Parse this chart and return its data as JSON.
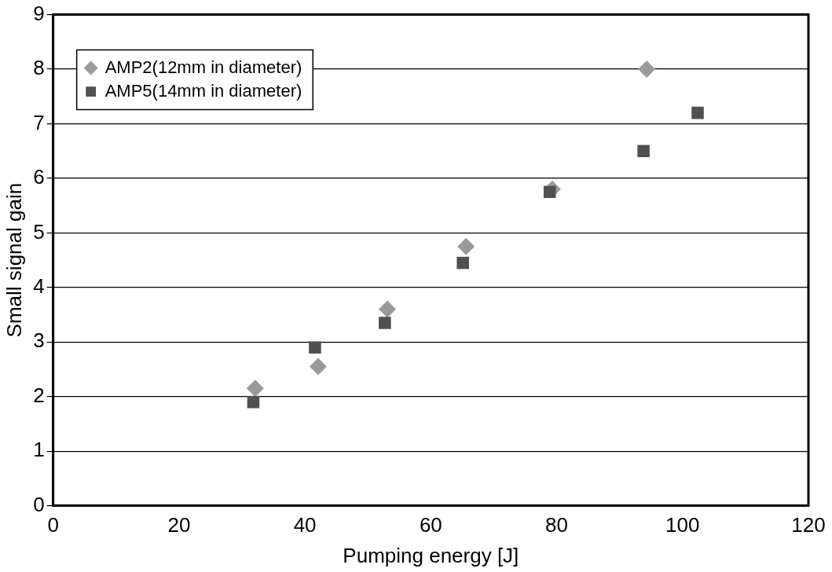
{
  "chart_data": {
    "type": "scatter",
    "xlabel": "Pumping energy [J]",
    "ylabel": "Small signal gain",
    "xlim": [
      0,
      120
    ],
    "xticks": [
      0,
      20,
      40,
      60,
      80,
      100,
      120
    ],
    "ylim": [
      0,
      9
    ],
    "yticks": [
      0,
      1,
      2,
      3,
      4,
      5,
      6,
      7,
      8,
      9
    ],
    "grid": "y",
    "legend": "top left",
    "series": [
      {
        "name": "AMP2(12mm in diameter)",
        "color": "#9a9a9a",
        "marker": "diamond",
        "x": [
          32.1,
          42.1,
          53.1,
          65.6,
          79.3,
          94.3
        ],
        "values": [
          2.15,
          2.55,
          3.6,
          4.75,
          5.8,
          8.0
        ]
      },
      {
        "name": "AMP5(14mm in diameter)",
        "color": "#505050",
        "marker": "square",
        "x": [
          31.8,
          41.6,
          52.7,
          65.1,
          78.9,
          93.8,
          102.4
        ],
        "values": [
          1.9,
          2.9,
          3.35,
          4.45,
          5.75,
          6.5,
          7.2
        ]
      }
    ]
  }
}
